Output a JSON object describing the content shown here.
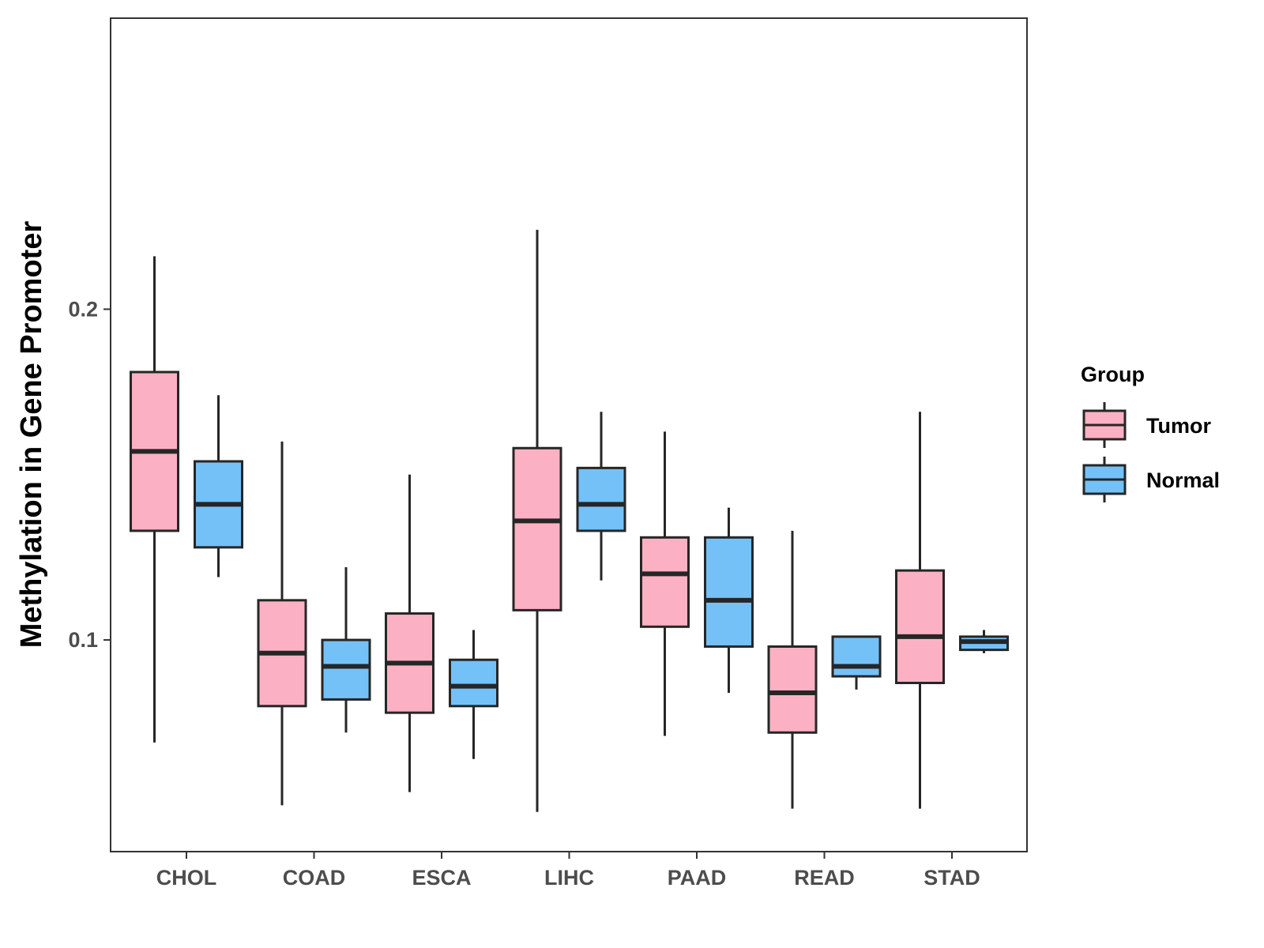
{
  "chart_data": {
    "type": "boxplot",
    "title": "",
    "xlabel": "",
    "ylabel": "Methylation in Gene Promoter",
    "ylim": [
      0.036,
      0.288
    ],
    "yticks": [
      0.1,
      0.2
    ],
    "ytick_labels": [
      "0.1",
      "0.2"
    ],
    "categories": [
      "CHOL",
      "COAD",
      "ESCA",
      "LIHC",
      "PAAD",
      "READ",
      "STAD"
    ],
    "legend": {
      "title": "Group",
      "position": "right"
    },
    "series": [
      {
        "name": "Tumor",
        "color": "#FBB1C3",
        "boxes": [
          {
            "min": 0.069,
            "q1": 0.133,
            "median": 0.157,
            "q3": 0.181,
            "max": 0.216
          },
          {
            "min": 0.05,
            "q1": 0.08,
            "median": 0.096,
            "q3": 0.112,
            "max": 0.16
          },
          {
            "min": 0.054,
            "q1": 0.078,
            "median": 0.093,
            "q3": 0.108,
            "max": 0.15
          },
          {
            "min": 0.048,
            "q1": 0.109,
            "median": 0.136,
            "q3": 0.158,
            "max": 0.224
          },
          {
            "min": 0.071,
            "q1": 0.104,
            "median": 0.12,
            "q3": 0.131,
            "max": 0.163
          },
          {
            "min": 0.049,
            "q1": 0.072,
            "median": 0.084,
            "q3": 0.098,
            "max": 0.133
          },
          {
            "min": 0.049,
            "q1": 0.087,
            "median": 0.101,
            "q3": 0.121,
            "max": 0.169
          }
        ]
      },
      {
        "name": "Normal",
        "color": "#74C1F8",
        "boxes": [
          {
            "min": 0.119,
            "q1": 0.128,
            "median": 0.141,
            "q3": 0.154,
            "max": 0.174
          },
          {
            "min": 0.072,
            "q1": 0.082,
            "median": 0.092,
            "q3": 0.1,
            "max": 0.122
          },
          {
            "min": 0.064,
            "q1": 0.08,
            "median": 0.086,
            "q3": 0.094,
            "max": 0.103
          },
          {
            "min": 0.118,
            "q1": 0.133,
            "median": 0.141,
            "q3": 0.152,
            "max": 0.169
          },
          {
            "min": 0.084,
            "q1": 0.098,
            "median": 0.112,
            "q3": 0.131,
            "max": 0.14
          },
          {
            "min": 0.085,
            "q1": 0.089,
            "median": 0.092,
            "q3": 0.101,
            "max": 0.101
          },
          {
            "min": 0.096,
            "q1": 0.097,
            "median": 0.0995,
            "q3": 0.101,
            "max": 0.103
          }
        ]
      }
    ]
  }
}
